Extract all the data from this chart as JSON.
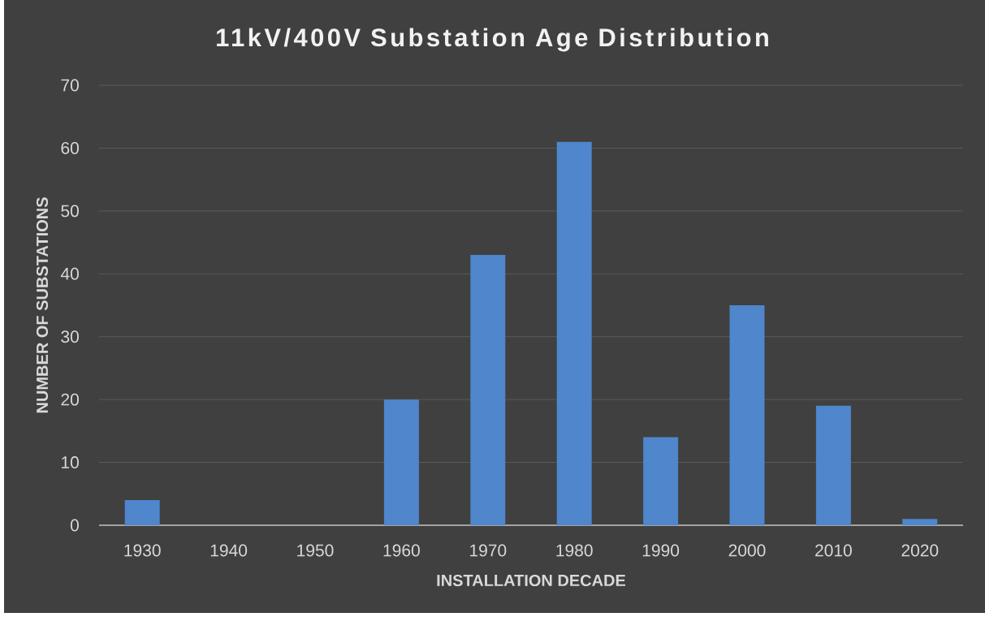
{
  "chart_data": {
    "type": "bar",
    "title": "11kV/400V Substation Age Distribution",
    "xlabel": "INSTALLATION DECADE",
    "ylabel": "NUMBER OF SUBSTATIONS",
    "categories": [
      "1930",
      "1940",
      "1950",
      "1960",
      "1970",
      "1980",
      "1990",
      "2000",
      "2010",
      "2020"
    ],
    "values": [
      4,
      0,
      0,
      20,
      43,
      61,
      14,
      35,
      19,
      1
    ],
    "color": "#4f86cc",
    "ylim": [
      0,
      70
    ],
    "yticks": [
      0,
      10,
      20,
      30,
      40,
      50,
      60,
      70
    ],
    "grid": "y"
  }
}
